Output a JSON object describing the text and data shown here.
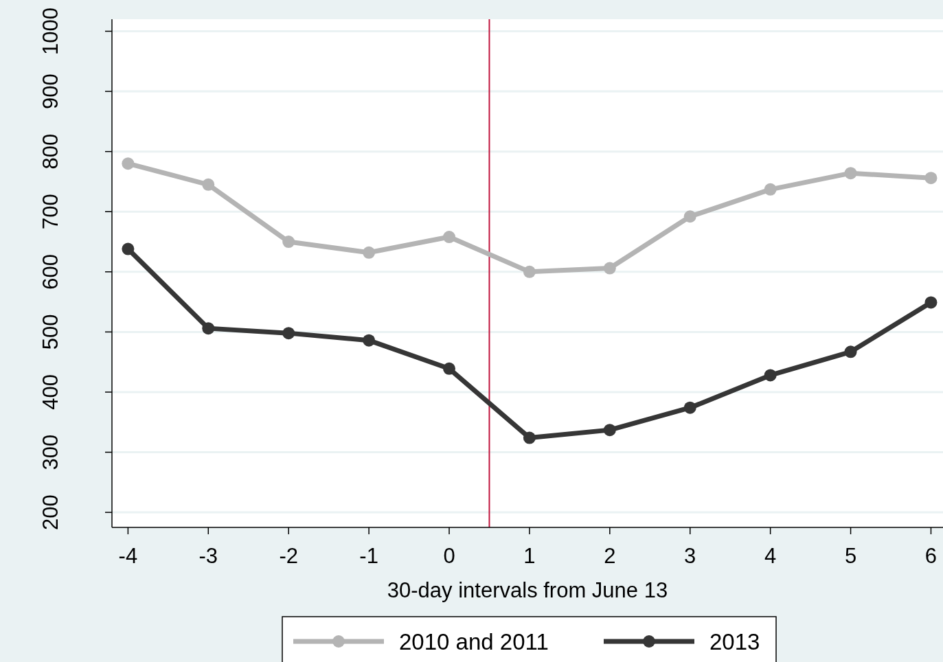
{
  "chart_data": {
    "type": "line",
    "xlabel": "30-day intervals from June 13",
    "x": [
      -4,
      -3,
      -2,
      -1,
      0,
      1,
      2,
      3,
      4,
      5,
      6
    ],
    "xlim": [
      -4.2,
      6.15
    ],
    "xticks": [
      -4,
      -3,
      -2,
      -1,
      0,
      1,
      2,
      3,
      4,
      5,
      6
    ],
    "ylim": [
      175,
      1020
    ],
    "yticks": [
      200,
      300,
      400,
      500,
      600,
      700,
      800,
      900,
      1000
    ],
    "grid": "y",
    "legend": "bottom",
    "marker": "circle",
    "line_style": "solid",
    "ref_lines": [
      {
        "axis": "x",
        "value": 0.5,
        "color": "#c0143c"
      }
    ],
    "series": [
      {
        "name": "2010 and 2011",
        "color": "#b4b4b4",
        "values": [
          780,
          745,
          650,
          632,
          658,
          600,
          606,
          692,
          737,
          764,
          756
        ]
      },
      {
        "name": "2013",
        "color": "#363636",
        "values": [
          638,
          506,
          498,
          486,
          439,
          324,
          337,
          374,
          428,
          467,
          549
        ]
      }
    ]
  }
}
